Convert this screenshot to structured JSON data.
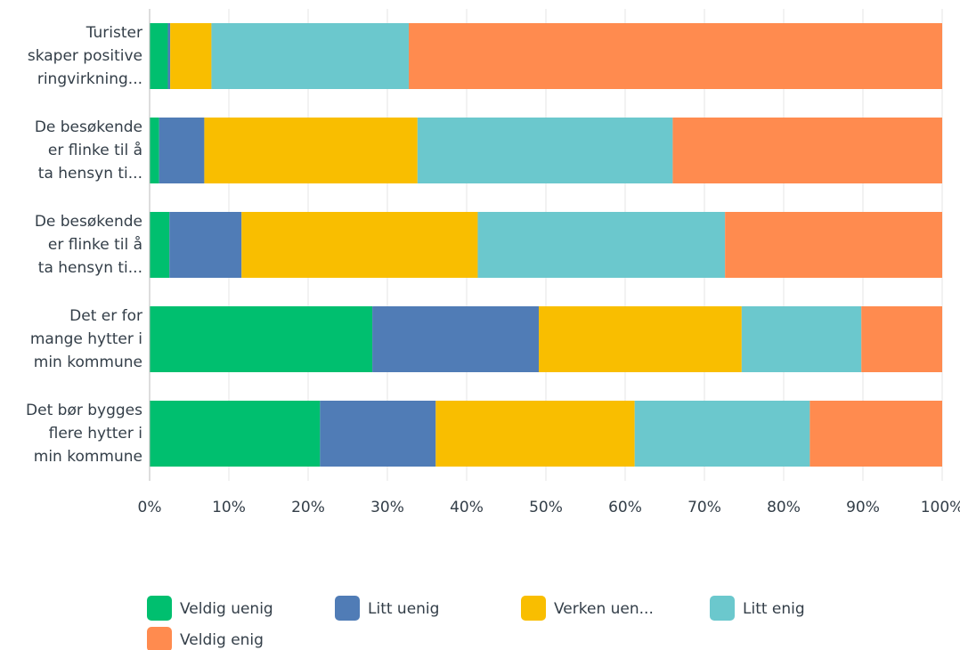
{
  "chart_data": {
    "type": "stacked_barh",
    "categories": [
      [
        "Turister",
        "skaper positive",
        "ringvirkning..."
      ],
      [
        "De besøkende",
        "er flinke til å",
        "ta hensyn ti..."
      ],
      [
        "De besøkende",
        "er flinke til å",
        "ta hensyn ti..."
      ],
      [
        "Det er for",
        "mange hytter i",
        "min kommune"
      ],
      [
        "Det bør bygges",
        "flere hytter i",
        "min kommune"
      ]
    ],
    "series": [
      {
        "name": "Veldig uenig",
        "color": "#00bf6f",
        "values": [
          2.3,
          1.2,
          2.5,
          28.1,
          21.5
        ]
      },
      {
        "name": "Litt uenig",
        "color": "#507cb6",
        "values": [
          0.3,
          5.7,
          9.1,
          21.0,
          14.6
        ]
      },
      {
        "name": "Verken uen...",
        "color": "#f9be00",
        "values": [
          5.2,
          26.9,
          29.8,
          25.6,
          25.1
        ]
      },
      {
        "name": "Litt enig",
        "color": "#6bc8cd",
        "values": [
          24.9,
          32.2,
          31.2,
          15.1,
          22.1
        ]
      },
      {
        "name": "Veldig enig",
        "color": "#ff8b4f",
        "values": [
          67.3,
          34.0,
          27.4,
          10.2,
          16.7
        ]
      }
    ],
    "xlim": [
      0,
      100
    ],
    "xticks": [
      {
        "value": 0,
        "label": "0%"
      },
      {
        "value": 10,
        "label": "10%"
      },
      {
        "value": 20,
        "label": "20%"
      },
      {
        "value": 30,
        "label": "30%"
      },
      {
        "value": 40,
        "label": "40%"
      },
      {
        "value": 50,
        "label": "50%"
      },
      {
        "value": 60,
        "label": "60%"
      },
      {
        "value": 70,
        "label": "70%"
      },
      {
        "value": 80,
        "label": "80%"
      },
      {
        "value": 90,
        "label": "90%"
      },
      {
        "value": 100,
        "label": "100%"
      }
    ],
    "grid": true
  }
}
